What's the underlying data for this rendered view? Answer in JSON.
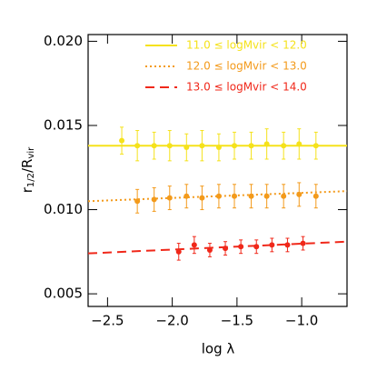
{
  "chart_data": {
    "type": "errorbar",
    "xlabel": "log λ",
    "ylabel_parts": [
      "r",
      "1/2",
      "/R",
      "vir"
    ],
    "xlim": [
      -2.65,
      -0.65
    ],
    "ylim": [
      0.00425,
      0.0204
    ],
    "xticks": [
      {
        "value": -2.5,
        "label": "−2.5"
      },
      {
        "value": -2.0,
        "label": "−2.0"
      },
      {
        "value": -1.5,
        "label": "−1.5"
      },
      {
        "value": -1.0,
        "label": "−1.0"
      }
    ],
    "yticks": [
      0.005,
      {
        "value": 0.01,
        "label": "0.010"
      },
      0.015,
      {
        "value": 0.02,
        "label": "0.020"
      }
    ],
    "legend": "top-right",
    "series": [
      {
        "name": "11.0 ≤ logMvir < 12.0",
        "color": "#f5e21b",
        "dash": "solid",
        "x": [
          -2.39,
          -2.27,
          -2.14,
          -2.02,
          -1.89,
          -1.77,
          -1.64,
          -1.52,
          -1.39,
          -1.27,
          -1.14,
          -1.02,
          -0.89
        ],
        "values": [
          0.0141,
          0.0138,
          0.0138,
          0.0138,
          0.0137,
          0.0138,
          0.0137,
          0.0138,
          0.0138,
          0.0139,
          0.0138,
          0.0139,
          0.0138
        ],
        "errors": [
          0.0008,
          0.0009,
          0.0008,
          0.0009,
          0.0008,
          0.0009,
          0.0008,
          0.0008,
          0.0008,
          0.0009,
          0.0008,
          0.0009,
          0.0008
        ],
        "fit_x": [
          -2.65,
          -0.65
        ],
        "fit_y": [
          0.0138,
          0.0138
        ]
      },
      {
        "name": "12.0 ≤ logMvir < 13.0",
        "color": "#f39a1b",
        "dash": "dotted",
        "x": [
          -2.27,
          -2.14,
          -2.02,
          -1.89,
          -1.77,
          -1.64,
          -1.52,
          -1.39,
          -1.27,
          -1.14,
          -1.02,
          -0.89
        ],
        "values": [
          0.0105,
          0.0106,
          0.0107,
          0.0108,
          0.0107,
          0.0108,
          0.0108,
          0.0108,
          0.0108,
          0.0108,
          0.0109,
          0.0108
        ],
        "errors": [
          0.0007,
          0.0007,
          0.0007,
          0.0007,
          0.0007,
          0.0007,
          0.0007,
          0.0007,
          0.0007,
          0.0007,
          0.0007,
          0.0007
        ],
        "fit_x": [
          -2.65,
          -0.65
        ],
        "fit_y": [
          0.0105,
          0.0111
        ]
      },
      {
        "name": "13.0 ≤ logMvir < 14.0",
        "color": "#f0281a",
        "dash": "dashed",
        "x": [
          -1.95,
          -1.83,
          -1.71,
          -1.59,
          -1.47,
          -1.35,
          -1.23,
          -1.11,
          -0.99
        ],
        "values": [
          0.0075,
          0.0079,
          0.0076,
          0.0077,
          0.0078,
          0.0078,
          0.0079,
          0.0079,
          0.008
        ],
        "errors": [
          0.0005,
          0.0005,
          0.0004,
          0.0004,
          0.0004,
          0.0004,
          0.0004,
          0.0004,
          0.0004
        ],
        "fit_x": [
          -2.65,
          -0.65
        ],
        "fit_y": [
          0.0074,
          0.0081
        ]
      }
    ]
  }
}
